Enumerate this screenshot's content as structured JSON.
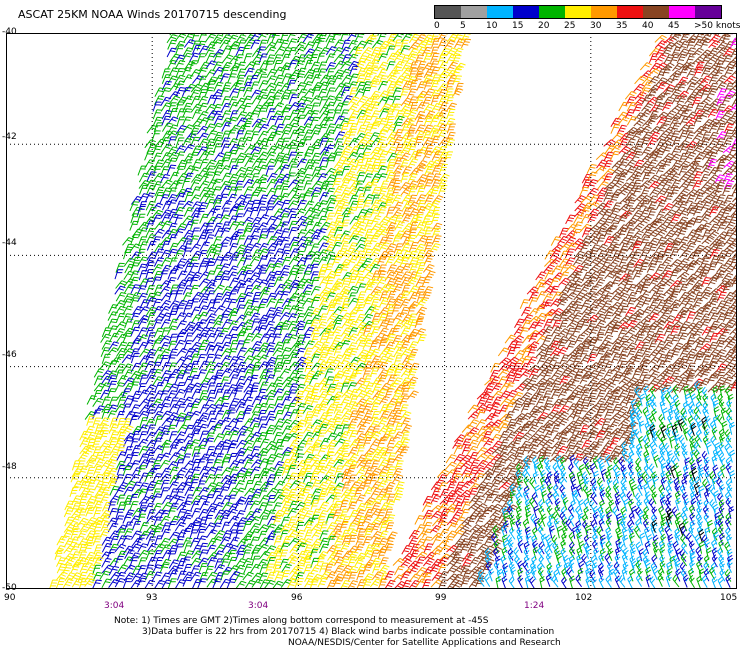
{
  "title": "ASCAT 25KM NOAA Winds 20170715 descending",
  "legend": {
    "bins": [
      {
        "label": "0",
        "color": "#555555"
      },
      {
        "label": "5",
        "color": "#a0a0a0"
      },
      {
        "label": "10",
        "color": "#00b4ff"
      },
      {
        "label": "15",
        "color": "#0000cc"
      },
      {
        "label": "20",
        "color": "#00b400"
      },
      {
        "label": "25",
        "color": "#ffee00"
      },
      {
        "label": "30",
        "color": "#ff9900"
      },
      {
        "label": "35",
        "color": "#ee1111"
      },
      {
        "label": "40",
        "color": "#884422"
      },
      {
        "label": "45",
        "color": "#ff00ff"
      },
      {
        "label": ">50 knots",
        "color": "#660099"
      }
    ]
  },
  "axes": {
    "y_labels": [
      "-40",
      "-42",
      "-44",
      "-46",
      "-48",
      "-50"
    ],
    "x_labels": [
      "90",
      "93",
      "96",
      "99",
      "102",
      "105"
    ],
    "time_labels": [
      "3:04",
      "3:04",
      "1:24"
    ]
  },
  "notes": {
    "line1": "Note: 1) Times are GMT 2)Times along bottom correspond to measurement at -45S",
    "line2": "3)Data buffer is 22 hrs from 20170715 4) Black wind barbs indicate possible contamination",
    "line3": "NOAA/NESDIS/Center for Satellite Applications and Research"
  },
  "map": {
    "lon_range": [
      90,
      105
    ],
    "lat_range": [
      -50,
      -40
    ],
    "gridlines": "dotted",
    "swaths": [
      {
        "name": "west",
        "dominant_speeds_knots": [
          "15-20",
          "20-25",
          "25-30"
        ]
      },
      {
        "name": "east",
        "dominant_speeds_knots": [
          "30-35",
          "35-40",
          "40-45",
          "10-20"
        ]
      }
    ]
  }
}
